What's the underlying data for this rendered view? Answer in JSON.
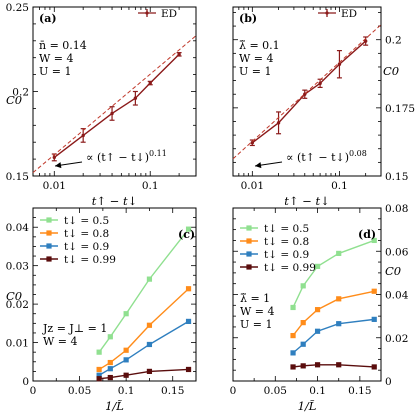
{
  "colors": {
    "ed": "#8b1a1a",
    "fit": "#c0392b",
    "t05": "#90e090",
    "t08": "#ff8c1a",
    "t09": "#2f7fbf",
    "t099": "#5a0d0d"
  },
  "chart_data": [
    {
      "panel": "(a)",
      "type": "scatter",
      "xscale": "log",
      "xlim": [
        0.006,
        0.3
      ],
      "ylim": [
        0.15,
        0.25
      ],
      "xlabel": "t↑ − t↓",
      "ylabel": "C0",
      "x_tick_labels": [
        "0.01",
        "0.1"
      ],
      "y_tick_labels": [
        "0.25",
        "0.2",
        "0.15"
      ],
      "params": [
        "n̄ = 0.14",
        "W = 4",
        "U = 1"
      ],
      "legend": [
        "ED"
      ],
      "fit_label": "∝ (t↑ − t↓)^0.11",
      "series": [
        {
          "name": "ED",
          "x": [
            0.01,
            0.02,
            0.04,
            0.07,
            0.1,
            0.2
          ],
          "y": [
            0.161,
            0.174,
            0.187,
            0.196,
            0.205,
            0.222
          ],
          "err": [
            0.002,
            0.004,
            0.004,
            0.004,
            0.001,
            0.001
          ]
        }
      ],
      "fit": {
        "exponent": 0.11,
        "x": [
          0.006,
          0.3
        ],
        "y": [
          0.152,
          0.233
        ]
      }
    },
    {
      "panel": "(b)",
      "type": "scatter",
      "xscale": "log",
      "xlim": [
        0.006,
        0.3
      ],
      "ylim": [
        0.15,
        0.212
      ],
      "xlabel": "t↑ − t↓",
      "ylabel": "C0",
      "x_tick_labels": [
        "0.01",
        "0.1"
      ],
      "y_tick_labels": [
        "0.2",
        "0.175",
        "0.15"
      ],
      "params": [
        "λ̃ = 0.1",
        "W = 4",
        "U = 1"
      ],
      "legend": [
        "ED"
      ],
      "fit_label": "∝ (t↑ − t↓)^0.08",
      "series": [
        {
          "name": "ED",
          "x": [
            0.01,
            0.02,
            0.04,
            0.06,
            0.1,
            0.2
          ],
          "y": [
            0.1622,
            0.1695,
            0.18,
            0.184,
            0.191,
            0.1995
          ],
          "err": [
            0.001,
            0.004,
            0.0015,
            0.0015,
            0.005,
            0.0015
          ]
        }
      ],
      "fit": {
        "exponent": 0.08,
        "x": [
          0.006,
          0.3
        ],
        "y": [
          0.1563,
          0.2055
        ]
      }
    },
    {
      "panel": "(c)",
      "type": "line",
      "xlim": [
        0,
        0.175
      ],
      "ylim": [
        0,
        0.045
      ],
      "xlabel": "1/L̃",
      "ylabel": "C0",
      "x_tick_labels": [
        "0",
        "0.05",
        "0.1",
        "0.15"
      ],
      "y_tick_labels": [
        "0",
        "0.01",
        "0.02",
        "0.03",
        "0.04"
      ],
      "params": [
        "Jz = J⊥ = 1",
        "W = 4"
      ],
      "legend": [
        "t↓ = 0.5",
        "t↓ = 0.8",
        "t↓ = 0.9",
        "t↓ = 0.99"
      ],
      "x": [
        0.071,
        0.083,
        0.1,
        0.125,
        0.167
      ],
      "series": [
        {
          "name": "t↓ = 0.5",
          "values": [
            0.0075,
            0.0115,
            0.0175,
            0.0265,
            0.0395
          ]
        },
        {
          "name": "t↓ = 0.8",
          "values": [
            0.003,
            0.0048,
            0.008,
            0.0145,
            0.024
          ]
        },
        {
          "name": "t↓ = 0.9",
          "values": [
            0.0015,
            0.0032,
            0.0055,
            0.0095,
            0.0155
          ]
        },
        {
          "name": "t↓ = 0.99",
          "values": [
            0.0006,
            0.0009,
            0.0015,
            0.0025,
            0.003
          ]
        }
      ]
    },
    {
      "panel": "(d)",
      "type": "line",
      "xlim": [
        0,
        0.175
      ],
      "ylim": [
        0,
        0.08
      ],
      "xlabel": "1/L̃",
      "ylabel": "C0",
      "x_tick_labels": [
        "0",
        "0.05",
        "0.1",
        "0.15"
      ],
      "y_tick_labels": [
        "0",
        "0.02",
        "0.04",
        "0.06",
        "0.08"
      ],
      "params": [
        "λ̃ = 1",
        "W = 4",
        "U = 1"
      ],
      "legend": [
        "t↓ = 0.5",
        "t↓ = 0.8",
        "t↓ = 0.9",
        "t↓ = 0.99"
      ],
      "x": [
        0.071,
        0.083,
        0.1,
        0.125,
        0.167
      ],
      "series": [
        {
          "name": "t↓ = 0.5",
          "values": [
            0.034,
            0.044,
            0.053,
            0.059,
            0.065
          ]
        },
        {
          "name": "t↓ = 0.8",
          "values": [
            0.021,
            0.027,
            0.033,
            0.038,
            0.0415
          ]
        },
        {
          "name": "t↓ = 0.9",
          "values": [
            0.013,
            0.017,
            0.023,
            0.0265,
            0.0285
          ]
        },
        {
          "name": "t↓ = 0.99",
          "values": [
            0.0065,
            0.007,
            0.0075,
            0.0075,
            0.0065
          ]
        }
      ]
    }
  ]
}
